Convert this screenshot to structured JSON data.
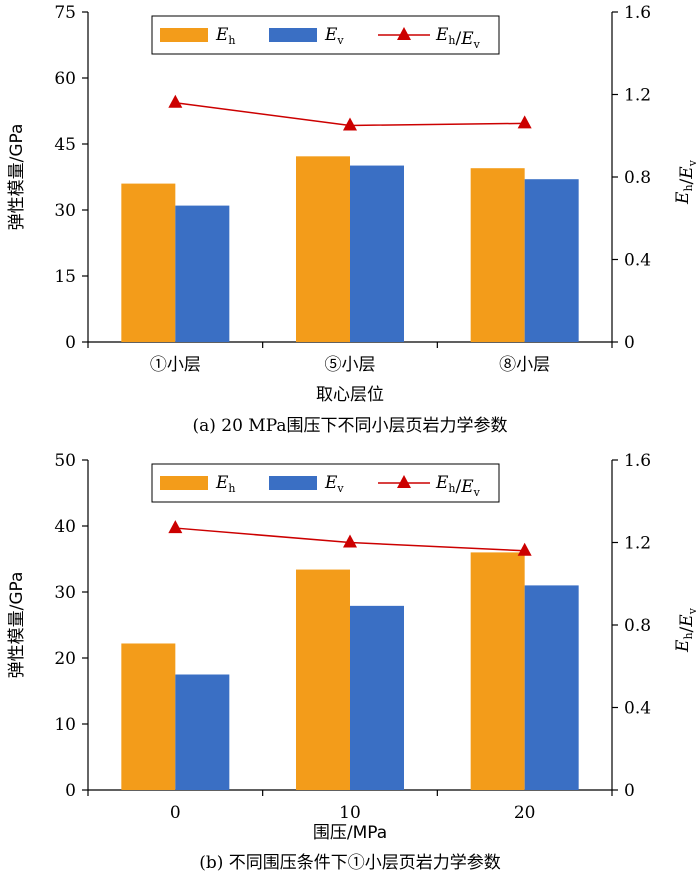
{
  "chart_data": [
    {
      "type": "bar",
      "caption": "(a) 20 MPa围压下不同小层页岩力学参数",
      "xlabel": "取心层位",
      "ylabel": "弹性模量/GPa",
      "ylabel_right": "Eh/Ev",
      "categories": [
        "①小层",
        "⑤小层",
        "⑧小层"
      ],
      "ylim": [
        0,
        75
      ],
      "yticks": [
        "0",
        "15",
        "30",
        "45",
        "60",
        "75"
      ],
      "ylim_right": [
        0,
        1.6
      ],
      "yticks_right": [
        "0",
        "0.4",
        "0.8",
        "1.2",
        "1.6"
      ],
      "series": [
        {
          "name": "Eh",
          "kind": "bar",
          "color": "#F39C1A",
          "values": [
            36,
            42.2,
            39.5
          ]
        },
        {
          "name": "Ev",
          "kind": "bar",
          "color": "#3A6FC4",
          "values": [
            31,
            40.1,
            37
          ]
        },
        {
          "name": "Eh/Ev",
          "kind": "line",
          "axis": "right",
          "color": "#CC0000",
          "marker": "triangle",
          "values": [
            1.16,
            1.05,
            1.06
          ]
        }
      ],
      "legend": "top"
    },
    {
      "type": "bar",
      "caption": "(b) 不同围压条件下①小层页岩力学参数",
      "xlabel": "围压/MPa",
      "ylabel": "弹性模量/GPa",
      "ylabel_right": "Eh/Ev",
      "categories": [
        "0",
        "10",
        "20"
      ],
      "ylim": [
        0,
        50
      ],
      "yticks": [
        "0",
        "10",
        "20",
        "30",
        "40",
        "50"
      ],
      "ylim_right": [
        0,
        1.6
      ],
      "yticks_right": [
        "0",
        "0.4",
        "0.8",
        "1.2",
        "1.6"
      ],
      "series": [
        {
          "name": "Eh",
          "kind": "bar",
          "color": "#F39C1A",
          "values": [
            22.2,
            33.4,
            36
          ]
        },
        {
          "name": "Ev",
          "kind": "bar",
          "color": "#3A6FC4",
          "values": [
            17.5,
            27.9,
            31
          ]
        },
        {
          "name": "Eh/Ev",
          "kind": "line",
          "axis": "right",
          "color": "#CC0000",
          "marker": "triangle",
          "values": [
            1.27,
            1.2,
            1.16
          ]
        }
      ],
      "legend": "top"
    }
  ]
}
